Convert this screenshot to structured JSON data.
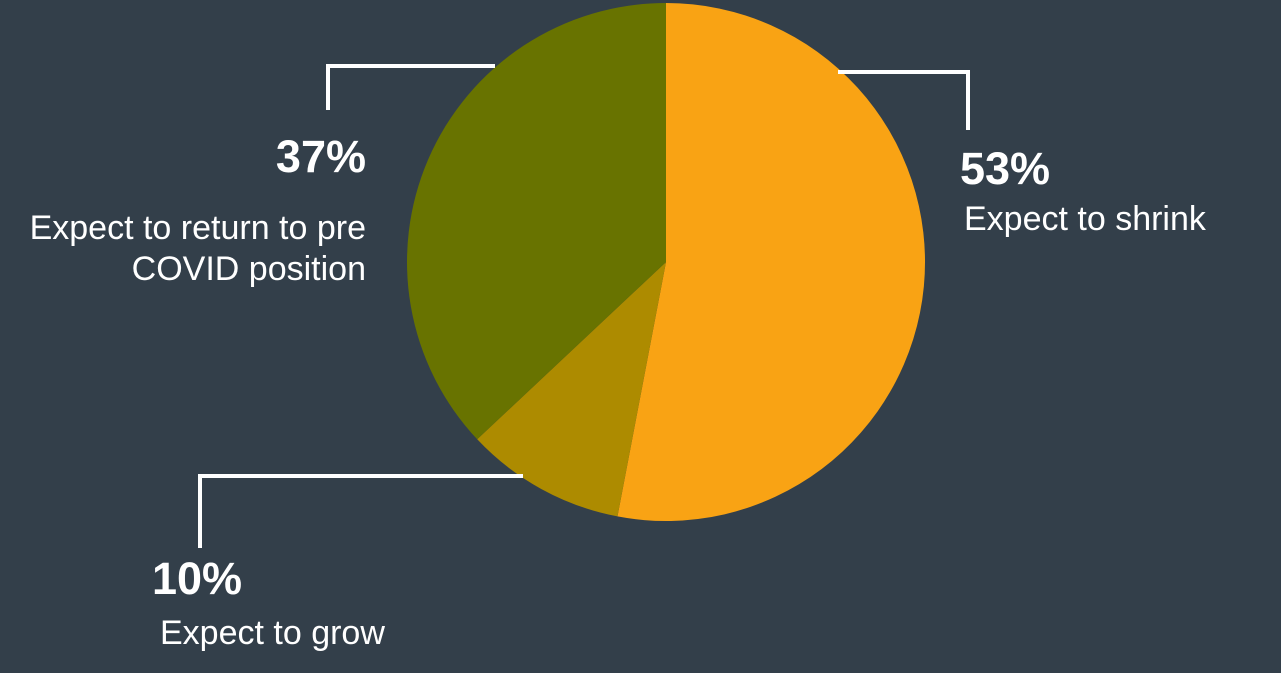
{
  "chart_data": {
    "type": "pie",
    "slices": [
      {
        "value": 53,
        "label": "53%",
        "description": "Expect to shrink",
        "color": "#f9a314"
      },
      {
        "value": 10,
        "label": "10%",
        "description": "Expect to grow",
        "color": "#ad8b00"
      },
      {
        "value": 37,
        "label": "37%",
        "description": "Expect to return to pre COVID position",
        "color": "#687300"
      }
    ],
    "start": "12 o'clock",
    "direction": "clockwise"
  },
  "colors": {
    "background": "#333f4a",
    "leader_line": "#ffffff",
    "text": "#ffffff"
  }
}
